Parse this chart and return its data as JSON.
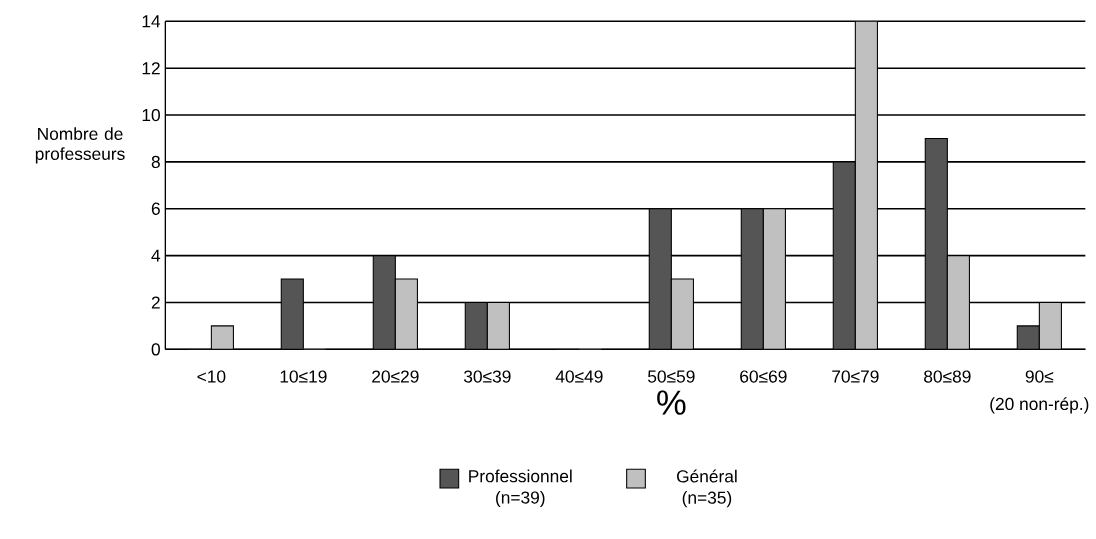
{
  "chart_data": {
    "type": "bar",
    "xlabel": "%",
    "ylabel": "Nombre de professeurs",
    "categories": [
      "<10",
      "10≤19",
      "20≤29",
      "30≤39",
      "40≤49",
      "50≤59",
      "60≤69",
      "70≤79",
      "80≤89",
      "90≤"
    ],
    "series": [
      {
        "name": "Professionnel (n=39)",
        "color": "#555555",
        "values": [
          0,
          3,
          4,
          2,
          0,
          6,
          6,
          8,
          9,
          1
        ]
      },
      {
        "name": "Général (n=35)",
        "color": "#c0c0c0",
        "values": [
          1,
          0,
          3,
          2,
          0,
          3,
          6,
          14,
          4,
          2
        ]
      }
    ],
    "ylim": [
      0,
      14
    ],
    "yticks": [
      0,
      2,
      4,
      6,
      8,
      10,
      12,
      14
    ],
    "grid": "y",
    "legend": "bottom",
    "annotations": [
      "(20 non-rép.)"
    ]
  }
}
